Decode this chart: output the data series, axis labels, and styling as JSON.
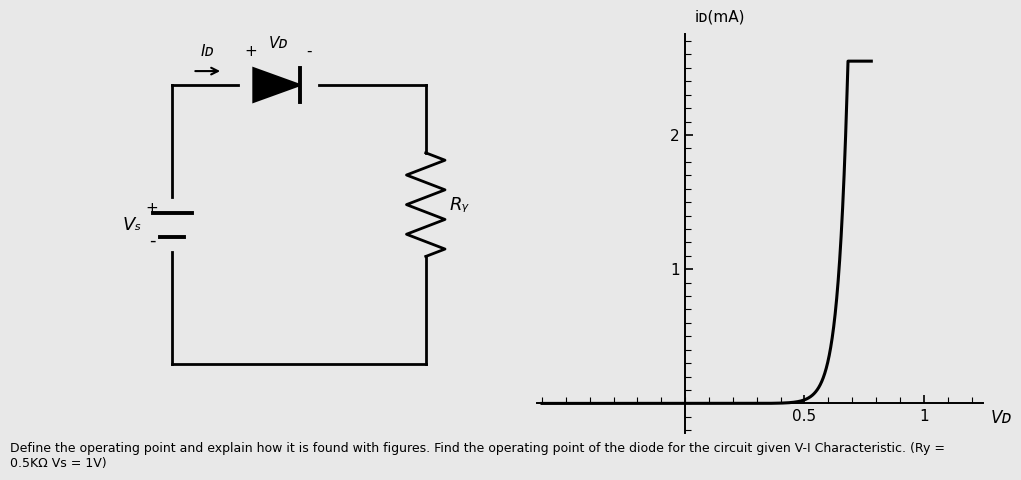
{
  "background_color": "#e8e8e8",
  "diode_curve": {
    "Is": 1e-10,
    "VT": 0.04,
    "x_min": -0.6,
    "x_max": 0.78,
    "y_clip_max": 2.55,
    "y_clip_min": -0.13
  },
  "ylabel": "iᴅ(mA)",
  "xlabel": "Vᴅ",
  "x_ticks": [
    0.5,
    1.0
  ],
  "y_ticks": [
    1.0,
    2.0
  ],
  "circuit_labels": {
    "ID": "Iᴅ",
    "VD_plus": "+",
    "VD_label": "Vᴅ",
    "VD_minus": "-",
    "VS_plus": "+",
    "VS_label": "Vₛ",
    "VS_minus": "-",
    "RY_label": "Rᵧ"
  },
  "text_bottom": "Define the operating point and explain how it is found with figures. Find the operating point of the diode for the circuit given V-I Characteristic. (Ry =\n0.5KΩ Vs = 1V)",
  "text_fontsize": 9
}
